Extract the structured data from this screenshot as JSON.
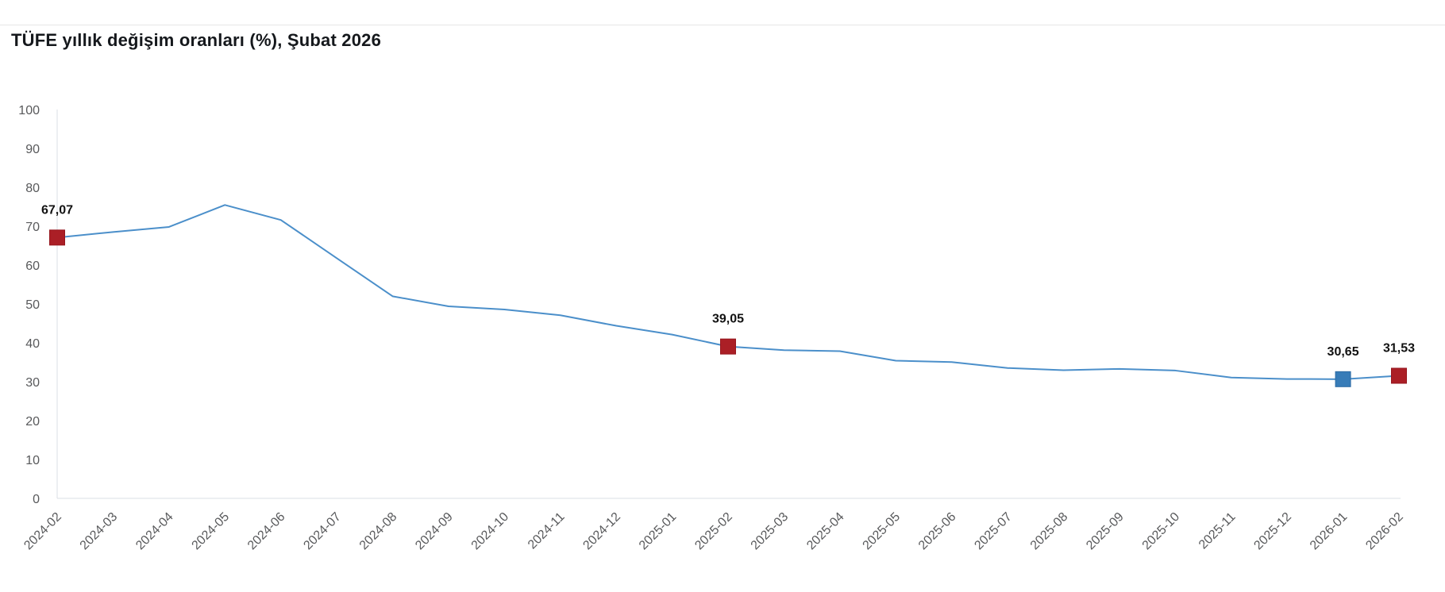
{
  "header": {
    "title": "TÜFE yıllık değişim oranları (%), Şubat 2026"
  },
  "chart_data": {
    "type": "line",
    "title": "TÜFE yıllık değişim oranları (%), Şubat 2026",
    "xlabel": "",
    "ylabel": "",
    "ylim": [
      0,
      100
    ],
    "yticks": [
      0,
      10,
      20,
      30,
      40,
      50,
      60,
      70,
      80,
      90,
      100
    ],
    "grid": "off",
    "legend": "none",
    "x": [
      "2024-02",
      "2024-03",
      "2024-04",
      "2024-05",
      "2024-06",
      "2024-07",
      "2024-08",
      "2024-09",
      "2024-10",
      "2024-11",
      "2024-12",
      "2025-01",
      "2025-02",
      "2025-03",
      "2025-04",
      "2025-05",
      "2025-06",
      "2025-07",
      "2025-08",
      "2025-09",
      "2025-10",
      "2025-11",
      "2025-12",
      "2026-01",
      "2026-02"
    ],
    "values": [
      67.07,
      68.5,
      69.8,
      75.45,
      71.6,
      61.78,
      51.97,
      49.38,
      48.58,
      47.09,
      44.38,
      42.12,
      39.05,
      38.1,
      37.86,
      35.41,
      35.05,
      33.52,
      32.95,
      33.29,
      32.87,
      31.07,
      30.7,
      30.65,
      31.53
    ],
    "annotated_points": [
      {
        "x": "2024-02",
        "value": 67.07,
        "label": "67,07",
        "marker_color": "#ab1f26"
      },
      {
        "x": "2025-02",
        "value": 39.05,
        "label": "39,05",
        "marker_color": "#ab1f26"
      },
      {
        "x": "2026-01",
        "value": 30.65,
        "label": "30,65",
        "marker_color": "#377cb8"
      },
      {
        "x": "2026-02",
        "value": 31.53,
        "label": "31,53",
        "marker_color": "#ab1f26"
      }
    ],
    "colors": {
      "line": "#4b8fca",
      "marker_red": "#ab1f26",
      "marker_red_stroke": "#96161e",
      "marker_blue": "#377cb8",
      "marker_blue_stroke": "#2d6ba3",
      "axis": "#dbdfe4",
      "tick_text": "#58595b",
      "annotation_text": "#121212"
    }
  }
}
